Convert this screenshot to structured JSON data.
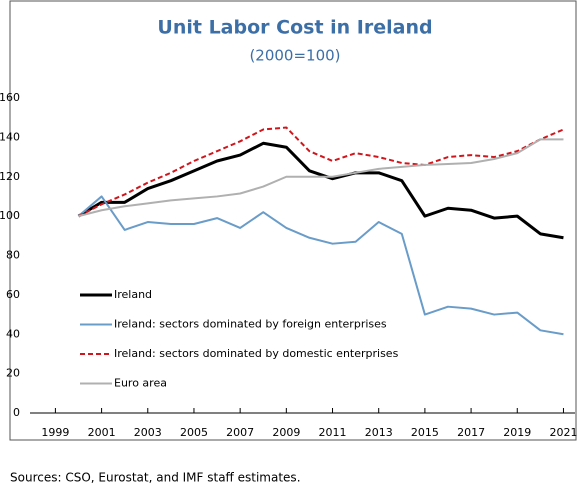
{
  "chart_data": {
    "type": "line",
    "title": "Unit Labor Cost in Ireland",
    "subtitle": "(2000=100)",
    "source": "Sources: CSO, Eurostat, and IMF staff estimates.",
    "x": [
      2000,
      2001,
      2002,
      2003,
      2004,
      2005,
      2006,
      2007,
      2008,
      2009,
      2010,
      2011,
      2012,
      2013,
      2014,
      2015,
      2016,
      2017,
      2018,
      2019,
      2020,
      2021
    ],
    "series": [
      {
        "name": "Ireland",
        "color": "#000000",
        "line_width": 3,
        "dashed": false,
        "values": [
          100,
          107,
          107,
          114,
          118,
          123,
          128,
          131,
          137,
          135,
          123,
          119,
          122,
          122,
          118,
          100,
          104,
          103,
          99,
          100,
          91,
          89
        ]
      },
      {
        "name": "Ireland: sectors dominated by foreign enterprises",
        "color": "#6a9cc9",
        "line_width": 2,
        "dashed": false,
        "values": [
          100,
          110,
          93,
          97,
          96,
          96,
          99,
          94,
          102,
          94,
          89,
          86,
          87,
          97,
          91,
          50,
          54,
          53,
          50,
          51,
          42,
          40
        ]
      },
      {
        "name": "Ireland: sectors dominated by domestic enterprises",
        "color": "#d0161c",
        "line_width": 2,
        "dashed": true,
        "values": [
          100,
          106,
          111,
          117,
          122,
          128,
          133,
          138,
          144,
          145,
          133,
          128,
          132,
          130,
          127,
          126,
          130,
          131,
          130,
          133,
          139,
          144
        ]
      },
      {
        "name": "Euro area",
        "color": "#b0b0b0",
        "line_width": 2,
        "dashed": false,
        "values": [
          100,
          103,
          105,
          106.5,
          108,
          109,
          110,
          111.5,
          115,
          120,
          120,
          120,
          122,
          124,
          125,
          126,
          126.5,
          127,
          129,
          132,
          139,
          139
        ]
      }
    ],
    "xlim": [
      1997.9,
      2021.5
    ],
    "xticks": [
      1999,
      2001,
      2003,
      2005,
      2007,
      2009,
      2011,
      2013,
      2015,
      2017,
      2019,
      2021
    ],
    "ylim": [
      0,
      160
    ],
    "yticks": [
      0,
      20,
      40,
      60,
      80,
      100,
      120,
      140,
      160
    ],
    "grid": false,
    "legend": "lower left"
  }
}
